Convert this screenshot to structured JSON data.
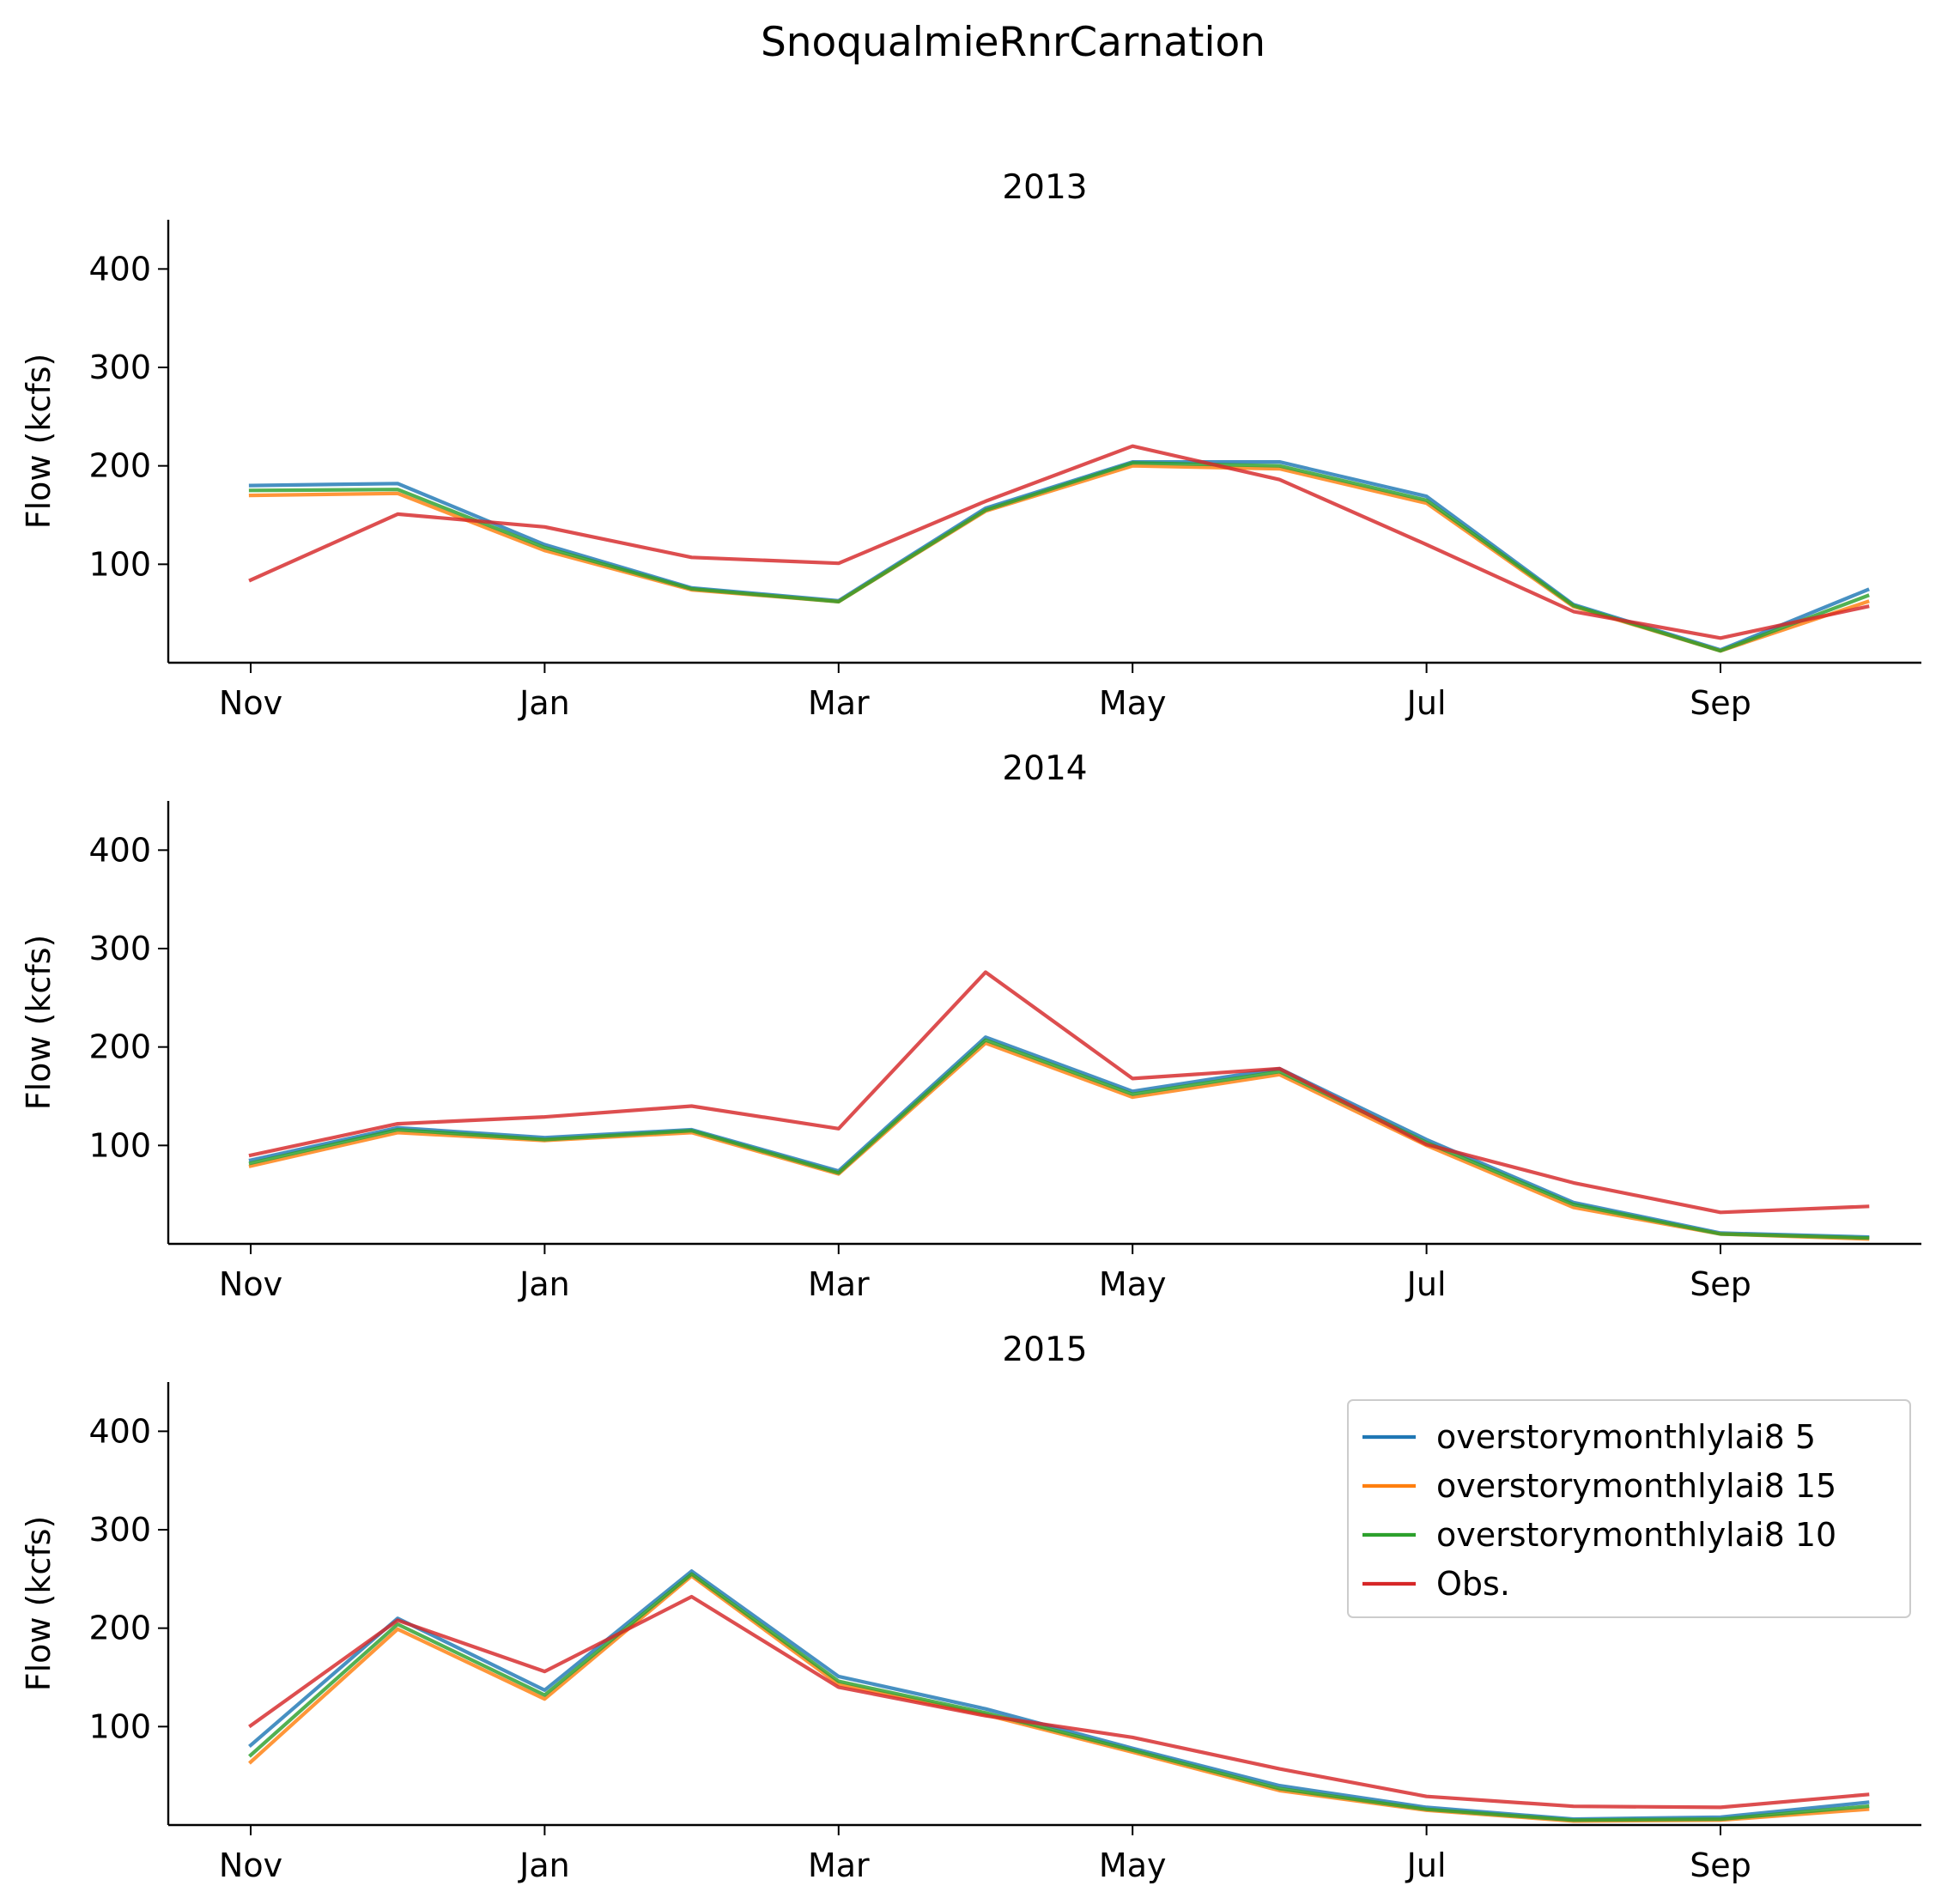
{
  "figure": {
    "suptitle": "SnoqualmieRnrCarnation"
  },
  "chart_data": [
    {
      "type": "line",
      "title": "2013",
      "ylabel": "Flow (kcfs)",
      "xlabel": "",
      "ylim": [
        0,
        450
      ],
      "yticks": [
        100,
        200,
        300,
        400
      ],
      "x": [
        "Nov",
        "Dec",
        "Jan",
        "Feb",
        "Mar",
        "Apr",
        "May",
        "Jun",
        "Jul",
        "Aug",
        "Sep",
        "Oct"
      ],
      "xtick_labels": [
        "Nov",
        "Jan",
        "Mar",
        "May",
        "Jul",
        "Sep"
      ],
      "series": [
        {
          "name": "overstorymonthlylai8 5",
          "color": "#1f77b4",
          "values": [
            180,
            182,
            120,
            76,
            63,
            157,
            204,
            204,
            169,
            59,
            13,
            74
          ]
        },
        {
          "name": "overstorymonthlylai8 15",
          "color": "#ff7f0e",
          "values": [
            170,
            172,
            114,
            74,
            62,
            154,
            200,
            197,
            162,
            57,
            12,
            62
          ]
        },
        {
          "name": "overstorymonthlylai8 10",
          "color": "#2ca02c",
          "values": [
            175,
            176,
            117,
            75,
            62,
            155,
            203,
            200,
            165,
            58,
            12,
            68
          ]
        },
        {
          "name": "Obs.",
          "color": "#d62728",
          "values": [
            84,
            151,
            138,
            107,
            101,
            164,
            220,
            186,
            120,
            52,
            25,
            57
          ]
        }
      ]
    },
    {
      "type": "line",
      "title": "2014",
      "ylabel": "Flow (kcfs)",
      "xlabel": "",
      "ylim": [
        0,
        450
      ],
      "yticks": [
        100,
        200,
        300,
        400
      ],
      "x": [
        "Nov",
        "Dec",
        "Jan",
        "Feb",
        "Mar",
        "Apr",
        "May",
        "Jun",
        "Jul",
        "Aug",
        "Sep",
        "Oct"
      ],
      "xtick_labels": [
        "Nov",
        "Jan",
        "Mar",
        "May",
        "Jul",
        "Sep"
      ],
      "series": [
        {
          "name": "overstorymonthlylai8 5",
          "color": "#1f77b4",
          "values": [
            85,
            118,
            108,
            116,
            74,
            210,
            155,
            178,
            106,
            42,
            11,
            7
          ]
        },
        {
          "name": "overstorymonthlylai8 15",
          "color": "#ff7f0e",
          "values": [
            79,
            113,
            105,
            113,
            71,
            204,
            149,
            172,
            100,
            37,
            10,
            5
          ]
        },
        {
          "name": "overstorymonthlylai8 10",
          "color": "#2ca02c",
          "values": [
            82,
            116,
            106,
            115,
            72,
            207,
            152,
            175,
            103,
            40,
            10,
            6
          ]
        },
        {
          "name": "Obs.",
          "color": "#d62728",
          "values": [
            90,
            122,
            129,
            140,
            117,
            276,
            168,
            178,
            101,
            62,
            32,
            38
          ]
        }
      ]
    },
    {
      "type": "line",
      "title": "2015",
      "ylabel": "Flow (kcfs)",
      "xlabel": "",
      "ylim": [
        0,
        450
      ],
      "yticks": [
        100,
        200,
        300,
        400
      ],
      "x": [
        "Nov",
        "Dec",
        "Jan",
        "Feb",
        "Mar",
        "Apr",
        "May",
        "Jun",
        "Jul",
        "Aug",
        "Sep",
        "Oct"
      ],
      "xtick_labels": [
        "Nov",
        "Jan",
        "Mar",
        "May",
        "Jul",
        "Sep"
      ],
      "legend": {
        "placement": "upper right"
      },
      "series": [
        {
          "name": "overstorymonthlylai8 5",
          "color": "#1f77b4",
          "values": [
            81,
            210,
            137,
            258,
            151,
            118,
            78,
            40,
            18,
            6,
            8,
            23
          ]
        },
        {
          "name": "overstorymonthlylai8 15",
          "color": "#ff7f0e",
          "values": [
            64,
            199,
            128,
            253,
            143,
            112,
            74,
            35,
            15,
            4,
            5,
            16
          ]
        },
        {
          "name": "overstorymonthlylai8 10",
          "color": "#2ca02c",
          "values": [
            71,
            204,
            132,
            255,
            146,
            114,
            76,
            37,
            16,
            5,
            6,
            19
          ]
        },
        {
          "name": "Obs.",
          "color": "#d62728",
          "values": [
            101,
            208,
            156,
            232,
            140,
            111,
            89,
            57,
            29,
            19,
            18,
            31
          ]
        }
      ]
    }
  ]
}
